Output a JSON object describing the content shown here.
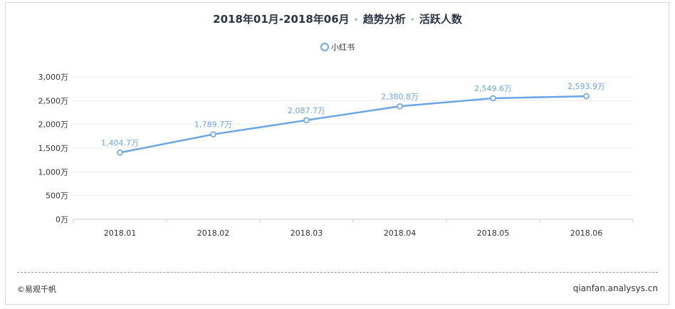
{
  "header": {
    "period": "2018年01月-2018年06月",
    "section": "趋势分析",
    "metric": "活跃人数"
  },
  "footer": {
    "copyright": "©易观千帆",
    "site": "qianfan.analysys.cn"
  },
  "colors": {
    "series": "#6aa6e6",
    "label": "#6aa6e6",
    "grid": "#eeeeee",
    "axis": "#cccccc",
    "text": "#333333"
  },
  "chart_data": {
    "type": "line",
    "title": "2018年01月-2018年06月 · 趋势分析 · 活跃人数",
    "categories": [
      "2018.01",
      "2018.02",
      "2018.03",
      "2018.04",
      "2018.05",
      "2018.06"
    ],
    "series": [
      {
        "name": "小红书",
        "values": [
          1404.7,
          1789.7,
          2087.7,
          2380.8,
          2549.6,
          2593.9
        ],
        "labels": [
          "1,404.7万",
          "1,789.7万",
          "2,087.7万",
          "2,380.8万",
          "2,549.6万",
          "2,593.9万"
        ]
      }
    ],
    "y_ticks": [
      0,
      500,
      1000,
      1500,
      2000,
      2500,
      3000
    ],
    "y_tick_labels": [
      "0万",
      "500万",
      "1,000万",
      "1,500万",
      "2,000万",
      "2,500万",
      "3,000万"
    ],
    "ylim": [
      0,
      3000
    ],
    "grid": true,
    "legend": "top-center",
    "xlabel": "",
    "ylabel": ""
  }
}
